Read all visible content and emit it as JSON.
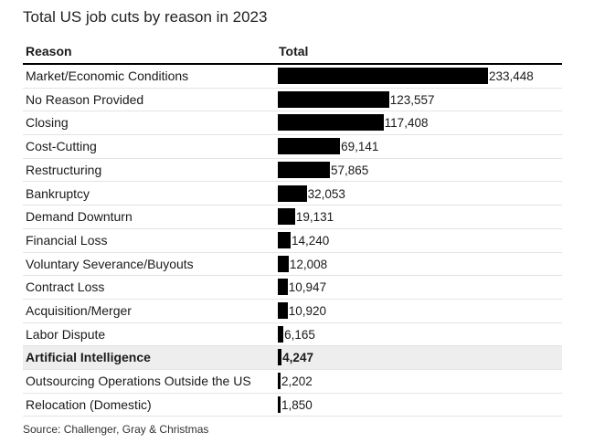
{
  "title": "Total US job cuts by reason in 2023",
  "columns": {
    "reason": "Reason",
    "total": "Total"
  },
  "source": "Source: Challenger, Gray & Christmas",
  "colors": {
    "bar": "#000000",
    "highlight_row": "#eeeeee"
  },
  "chart_data": {
    "type": "bar",
    "orientation": "horizontal",
    "title": "Total US job cuts by reason in 2023",
    "categories": [
      "Market/Economic Conditions",
      "No Reason Provided",
      "Closing",
      "Cost-Cutting",
      "Restructuring",
      "Bankruptcy",
      "Demand Downturn",
      "Financial Loss",
      "Voluntary Severance/Buyouts",
      "Contract Loss",
      "Acquisition/Merger",
      "Labor Dispute",
      "Artificial Intelligence",
      "Outsourcing Operations Outside the US",
      "Relocation (Domestic)"
    ],
    "values": [
      233448,
      123557,
      117408,
      69141,
      57865,
      32053,
      19131,
      14240,
      12008,
      10947,
      10920,
      6165,
      4247,
      2202,
      1850
    ],
    "value_labels": [
      "233,448",
      "123,557",
      "117,408",
      "69,141",
      "57,865",
      "32,053",
      "19,131",
      "14,240",
      "12,008",
      "10,947",
      "10,920",
      "6,165",
      "4,247",
      "2,202",
      "1,850"
    ],
    "highlighted_category": "Artificial Intelligence",
    "xlim": [
      0,
      233448
    ],
    "grid": false,
    "legend": "none"
  }
}
